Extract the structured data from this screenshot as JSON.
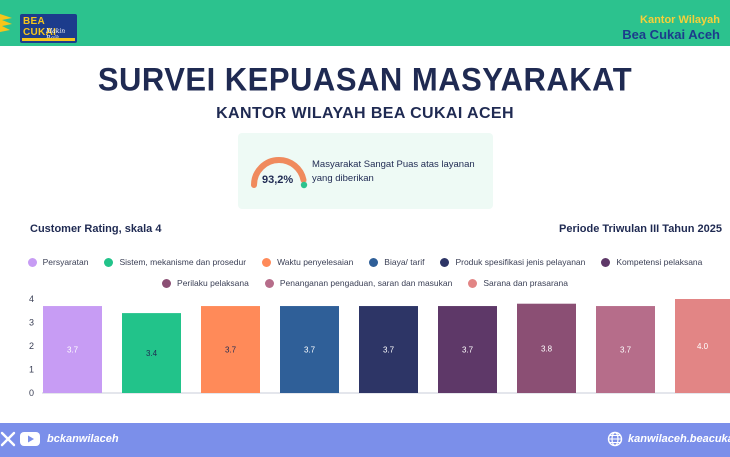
{
  "header": {
    "logo_title": "BEA CUKAI",
    "logo_tagline": "Makin Baik",
    "kanwil_line1": "Kantor Wilayah",
    "kanwil_line2": "Bea Cukai Aceh"
  },
  "title": "SURVEI KEPUASAN MASYARAKAT",
  "subtitle": "KANTOR WILAYAH BEA CUKAI ACEH",
  "satisfaction": {
    "percent_label": "93,2%",
    "percent_value": 93.2,
    "text": "Masyarakat Sangat Puas atas layanan yang diberikan"
  },
  "rating_label": "Customer Rating, skala 4",
  "periode_label": "Periode Triwulan III Tahun 2025",
  "chart_data": {
    "type": "bar",
    "categories": [
      "Persyaratan",
      "Sistem, mekanisme dan prosedur",
      "Waktu penyelesaian",
      "Biaya/ tarif",
      "Produk spesifikasi jenis pelayanan",
      "Kompetensi pelaksana",
      "Perilaku pelaksana",
      "Penanganan pengaduan, saran dan masukan",
      "Sarana dan prasarana"
    ],
    "values": [
      3.7,
      3.4,
      3.7,
      3.7,
      3.7,
      3.7,
      3.8,
      3.7,
      4.0
    ],
    "value_labels": [
      "3.7",
      "3.4",
      "3.7",
      "3.7",
      "3.7",
      "3.7",
      "3.8",
      "3.7",
      "4.0"
    ],
    "colors": [
      "#c79cf4",
      "#22c38a",
      "#ff8a59",
      "#2f5f98",
      "#2d3566",
      "#5e3868",
      "#8b4f74",
      "#b66d8a",
      "#e28585"
    ],
    "yticks": [
      "0",
      "1",
      "2",
      "3",
      "4"
    ],
    "ylim": [
      0,
      4
    ],
    "legend_placement": "top",
    "grid": false
  },
  "footer": {
    "handle": "bckanwilaceh",
    "website": "kanwilaceh.beacukai"
  }
}
